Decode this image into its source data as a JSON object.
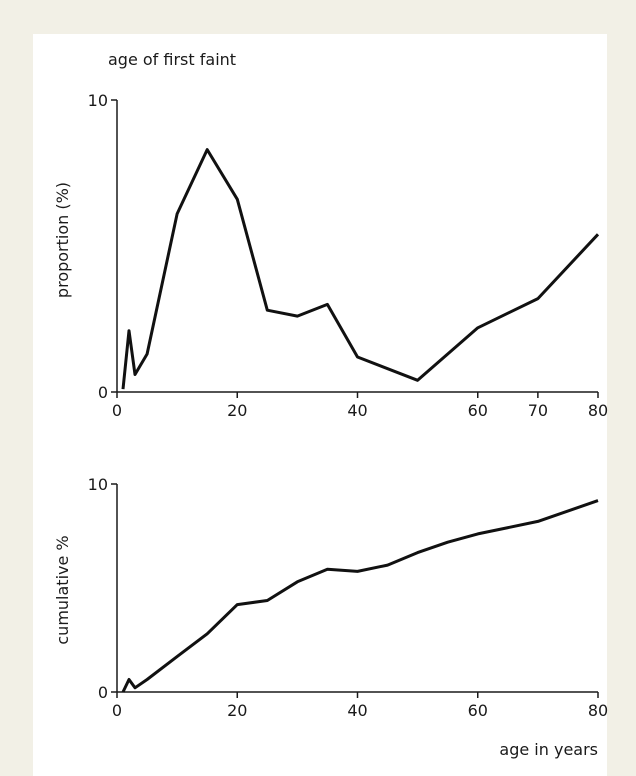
{
  "chart_data": [
    {
      "type": "line",
      "title": "age of first faint",
      "xlabel": "",
      "ylabel": "proportion (%)",
      "xlim": [
        0,
        80
      ],
      "ylim": [
        0,
        10
      ],
      "xticks": [
        0,
        20,
        40,
        60,
        70,
        80
      ],
      "yticks": [
        0,
        10
      ],
      "grid": false,
      "series": [
        {
          "x": [
            1,
            2,
            3,
            5,
            10,
            15,
            20,
            25,
            30,
            35,
            40,
            50,
            60,
            70,
            80
          ],
          "y": [
            0.1,
            2.1,
            0.6,
            1.3,
            6.1,
            8.3,
            6.6,
            2.8,
            2.6,
            3.0,
            1.2,
            0.4,
            2.2,
            3.2,
            5.4
          ]
        }
      ]
    },
    {
      "type": "line",
      "title": "",
      "xlabel": "age in years",
      "ylabel": "cumulative %",
      "xlim": [
        0,
        80
      ],
      "ylim": [
        0,
        10
      ],
      "xticks": [
        0,
        20,
        40,
        60,
        80
      ],
      "yticks": [
        0,
        10
      ],
      "grid": false,
      "series": [
        {
          "x": [
            1,
            2,
            3,
            5,
            10,
            15,
            20,
            25,
            30,
            35,
            40,
            45,
            50,
            55,
            60,
            70,
            80
          ],
          "y": [
            0.0,
            0.6,
            0.2,
            0.6,
            1.7,
            2.8,
            4.2,
            4.4,
            5.3,
            5.9,
            5.8,
            6.1,
            6.7,
            7.2,
            7.6,
            8.2,
            9.2
          ]
        }
      ]
    }
  ]
}
